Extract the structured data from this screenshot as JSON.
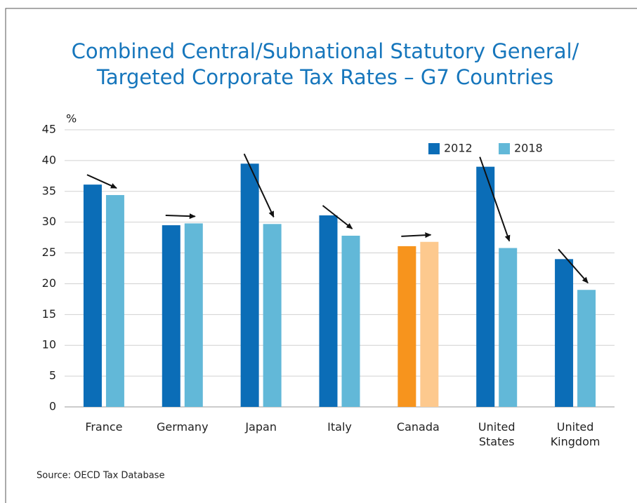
{
  "chart_data": {
    "type": "bar",
    "title": [
      "Combined Central/Subnational Statutory General/",
      "Targeted Corporate Tax Rates – G7 Countries"
    ],
    "y_label": "%",
    "source": "Source: OECD Tax Database",
    "categories": [
      "France",
      "Germany",
      "Japan",
      "Italy",
      "Canada",
      "United States",
      "United Kingdom"
    ],
    "series": [
      {
        "name": "2012",
        "color": "#0b6db7",
        "colors": [
          "#0b6db7",
          "#0b6db7",
          "#0b6db7",
          "#0b6db7",
          "#f7941d",
          "#0b6db7",
          "#0b6db7"
        ],
        "values": [
          36.1,
          29.5,
          39.5,
          31.1,
          26.1,
          39.0,
          24.0
        ]
      },
      {
        "name": "2018",
        "color": "#62b8d8",
        "colors": [
          "#62b8d8",
          "#62b8d8",
          "#62b8d8",
          "#62b8d8",
          "#fdc98e",
          "#62b8d8",
          "#62b8d8"
        ],
        "values": [
          34.4,
          29.8,
          29.7,
          27.8,
          26.8,
          25.8,
          19.0
        ]
      }
    ],
    "ylim": [
      0,
      45
    ],
    "yticks": [
      0,
      5,
      10,
      15,
      20,
      25,
      30,
      35,
      40,
      45
    ],
    "grid": true,
    "legend": "top-right",
    "change_arrows": true
  }
}
